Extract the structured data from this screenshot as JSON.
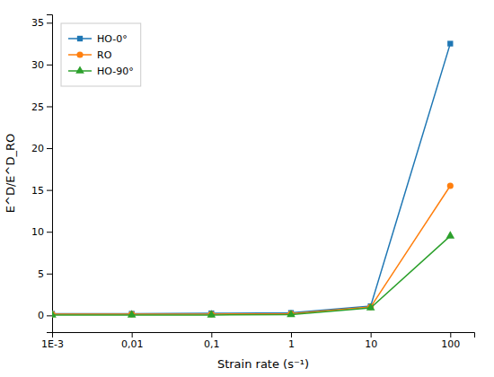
{
  "chart_data": {
    "type": "line",
    "x": [
      0.001,
      0.01,
      0.1,
      1.0,
      10.0,
      100.0
    ],
    "series": [
      {
        "name": "HO-0°",
        "marker": "square",
        "values": [
          0.2,
          0.2,
          0.25,
          0.3,
          1.1,
          32.5
        ]
      },
      {
        "name": "RO",
        "marker": "circle",
        "values": [
          0.15,
          0.15,
          0.15,
          0.2,
          1.0,
          15.5
        ]
      },
      {
        "name": "HO-90°",
        "marker": "triangle",
        "values": [
          0.05,
          0.05,
          0.05,
          0.1,
          0.9,
          9.5
        ]
      }
    ],
    "xlabel": "Strain rate (s⁻¹)",
    "ylabel": "E^D/E^D_RO",
    "log": "x",
    "xlim": [
      0.001,
      200
    ],
    "xticks": [
      {
        "value": 0.001,
        "label": "1E-3"
      },
      {
        "value": 0.01,
        "label": "0,01"
      },
      {
        "value": 0.1,
        "label": "0,1"
      },
      1,
      10,
      100
    ],
    "ylim": [
      -2,
      36
    ],
    "yticks": [
      0,
      5,
      10,
      15,
      20,
      25,
      30,
      35
    ],
    "legend": "upper left"
  }
}
